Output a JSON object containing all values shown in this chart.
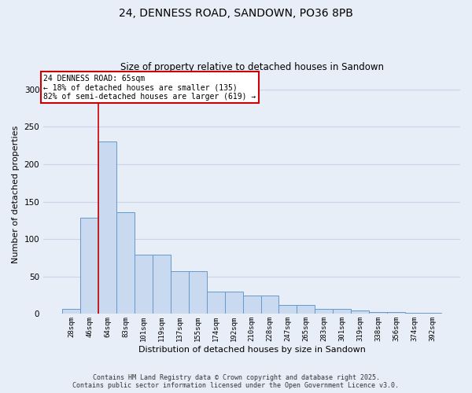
{
  "title_line1": "24, DENNESS ROAD, SANDOWN, PO36 8PB",
  "title_line2": "Size of property relative to detached houses in Sandown",
  "xlabel": "Distribution of detached houses by size in Sandown",
  "ylabel": "Number of detached properties",
  "categories": [
    "28sqm",
    "46sqm",
    "64sqm",
    "83sqm",
    "101sqm",
    "119sqm",
    "137sqm",
    "155sqm",
    "174sqm",
    "192sqm",
    "210sqm",
    "228sqm",
    "247sqm",
    "265sqm",
    "283sqm",
    "301sqm",
    "319sqm",
    "338sqm",
    "356sqm",
    "374sqm",
    "392sqm"
  ],
  "values": [
    7,
    128,
    230,
    136,
    79,
    79,
    57,
    57,
    30,
    30,
    25,
    25,
    12,
    12,
    7,
    7,
    5,
    3,
    3,
    1,
    2
  ],
  "bar_color": "#c9d9f0",
  "bar_edge_color": "#6699cc",
  "property_line_x": 1.5,
  "annotation_text": "24 DENNESS ROAD: 65sqm\n← 18% of detached houses are smaller (135)\n82% of semi-detached houses are larger (619) →",
  "annotation_box_color": "#ffffff",
  "annotation_box_edge": "#cc0000",
  "line_color": "#cc0000",
  "footer_line1": "Contains HM Land Registry data © Crown copyright and database right 2025.",
  "footer_line2": "Contains public sector information licensed under the Open Government Licence v3.0.",
  "bg_color": "#e8eef8",
  "plot_bg_color": "#e8eef8",
  "grid_color": "#c8d4e8",
  "ylim": [
    0,
    320
  ],
  "yticks": [
    0,
    50,
    100,
    150,
    200,
    250,
    300
  ]
}
